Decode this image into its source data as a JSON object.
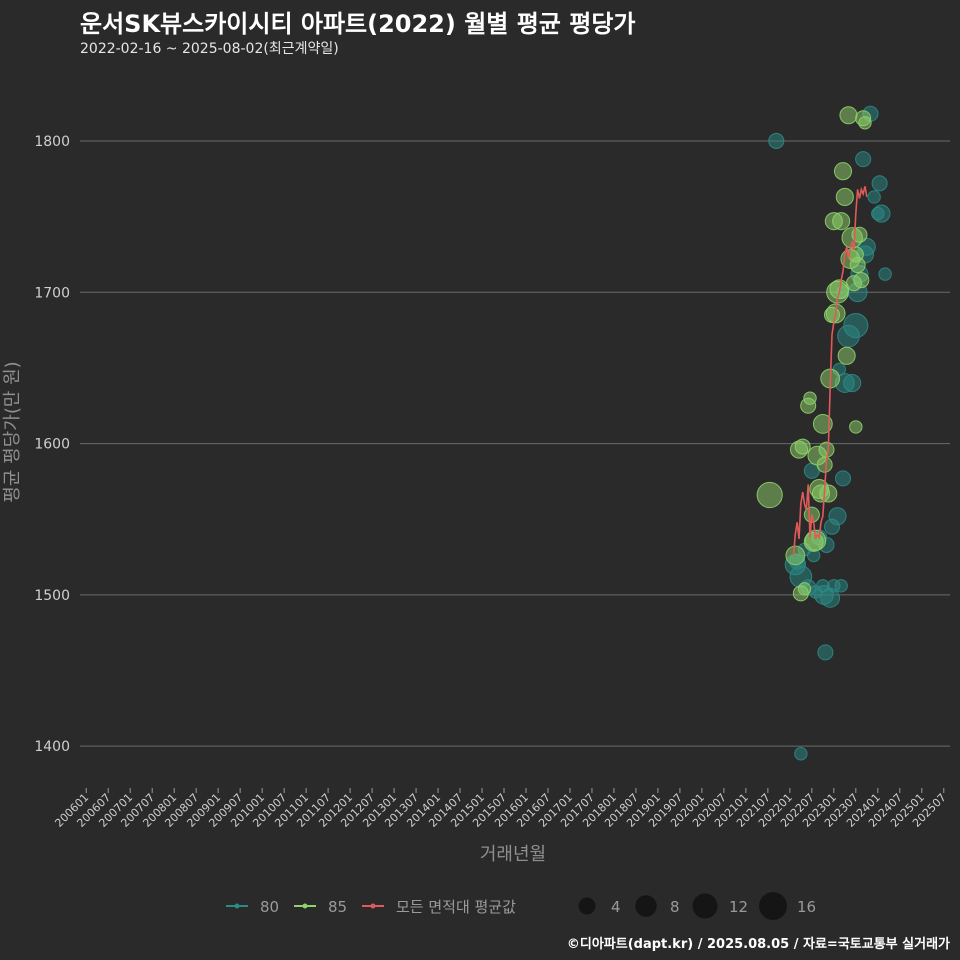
{
  "header": {
    "title": "운서SK뷰스카이시티 아파트(2022) 월별 평균 평당가",
    "subtitle": "2022-02-16 ~ 2025-08-02(최근계약일)"
  },
  "footer": {
    "caption": "©디아파트(dapt.kr) / 2025.08.05 / 자료=국토교통부 실거래가"
  },
  "colors": {
    "background": "#2a2a2b",
    "grid": "#6b6b6b",
    "series_80": "#2a8a86",
    "series_85": "#8fd16a",
    "avg_line": "#e05a5a"
  },
  "chart_data": {
    "type": "scatter",
    "title": "운서SK뷰스카이시티 아파트(2022) 월별 평균 평당가",
    "xlabel": "거래년월",
    "ylabel": "평균 평당가(만 원)",
    "ylim": [
      1375,
      1835
    ],
    "yticks": [
      1400,
      1500,
      1600,
      1700,
      1800
    ],
    "grid": true,
    "x_range_months": [
      -1.7,
      235.7
    ],
    "x_ticks": [
      "200601",
      "200607",
      "200701",
      "200707",
      "200801",
      "200807",
      "200901",
      "200907",
      "201001",
      "201007",
      "201101",
      "201107",
      "201201",
      "201207",
      "201301",
      "201307",
      "201401",
      "201407",
      "201501",
      "201507",
      "201601",
      "201607",
      "201701",
      "201707",
      "201801",
      "201807",
      "201901",
      "201907",
      "202001",
      "202007",
      "202101",
      "202107",
      "202201",
      "202207",
      "202301",
      "202307",
      "202401",
      "202407",
      "202501",
      "202507"
    ],
    "series": [
      {
        "name": "80",
        "color": "#2a8a86",
        "points": [
          [
            193.5,
            1520,
            5
          ],
          [
            194,
            1522,
            2
          ],
          [
            195,
            1512,
            6
          ],
          [
            196,
            1530,
            1
          ],
          [
            197,
            1505,
            2
          ],
          [
            198,
            1582,
            2
          ],
          [
            198.5,
            1526,
            1
          ],
          [
            199,
            1502,
            1
          ],
          [
            200,
            1538,
            2
          ],
          [
            201,
            1506,
            1
          ],
          [
            201.3,
            1500,
            4
          ],
          [
            201.7,
            1462,
            2
          ],
          [
            202,
            1533,
            2
          ],
          [
            203,
            1498,
            4
          ],
          [
            203.5,
            1545,
            2
          ],
          [
            204,
            1506,
            1
          ],
          [
            205,
            1552,
            3
          ],
          [
            206,
            1506,
            1
          ],
          [
            206.5,
            1577,
            2
          ],
          [
            207,
            1640,
            4
          ],
          [
            208,
            1671,
            6
          ],
          [
            209,
            1640,
            3
          ],
          [
            210,
            1678,
            8
          ],
          [
            210.5,
            1700,
            4
          ],
          [
            211,
            1712,
            3
          ],
          [
            212,
            1788,
            2
          ],
          [
            212.5,
            1725,
            3
          ],
          [
            213,
            1730,
            3
          ],
          [
            214,
            1818,
            2
          ],
          [
            215,
            1763,
            1
          ],
          [
            216,
            1752,
            1
          ],
          [
            216.5,
            1772,
            2
          ],
          [
            217,
            1752,
            3
          ],
          [
            218,
            1712,
            1
          ],
          [
            195,
            1395,
            1
          ],
          [
            205.5,
            1649,
            1
          ],
          [
            206.5,
            1700,
            1
          ],
          [
            188.3,
            1800,
            2
          ]
        ]
      },
      {
        "name": "85",
        "color": "#8fd16a",
        "points": [
          [
            193.5,
            1526,
            4
          ],
          [
            194.5,
            1596,
            3
          ],
          [
            195,
            1501,
            2
          ],
          [
            195.5,
            1598,
            2
          ],
          [
            196,
            1504,
            1
          ],
          [
            197,
            1625,
            2
          ],
          [
            197.5,
            1630,
            1
          ],
          [
            198,
            1553,
            2
          ],
          [
            198.5,
            1535,
            4
          ],
          [
            199,
            1536,
            5
          ],
          [
            199.5,
            1592,
            4
          ],
          [
            200,
            1570,
            4
          ],
          [
            200.5,
            1567,
            3
          ],
          [
            201,
            1613,
            4
          ],
          [
            201.5,
            1586,
            2
          ],
          [
            202,
            1596,
            2
          ],
          [
            202.5,
            1567,
            3
          ],
          [
            203,
            1643,
            4
          ],
          [
            203.5,
            1685,
            2
          ],
          [
            204,
            1747,
            3
          ],
          [
            204.5,
            1686,
            4
          ],
          [
            205,
            1700,
            6
          ],
          [
            205.5,
            1702,
            4
          ],
          [
            206,
            1747,
            3
          ],
          [
            206.5,
            1780,
            3
          ],
          [
            207,
            1763,
            3
          ],
          [
            207.5,
            1658,
            3
          ],
          [
            208,
            1817,
            3
          ],
          [
            208.5,
            1722,
            4
          ],
          [
            209,
            1736,
            5
          ],
          [
            209.5,
            1706,
            2
          ],
          [
            210,
            1725,
            2
          ],
          [
            210.5,
            1718,
            2
          ],
          [
            211,
            1738,
            2
          ],
          [
            211.5,
            1708,
            2
          ],
          [
            212,
            1815,
            2
          ],
          [
            212.5,
            1812,
            1
          ],
          [
            210,
            1611,
            1
          ],
          [
            186.5,
            1566,
            9
          ]
        ]
      }
    ],
    "avg_line": {
      "name": "모든 면적대 평균값",
      "color": "#e05a5a",
      "points": [
        [
          193,
          1526
        ],
        [
          193.5,
          1540
        ],
        [
          194,
          1548
        ],
        [
          194.5,
          1537
        ],
        [
          195,
          1560
        ],
        [
          195.5,
          1568
        ],
        [
          196,
          1560
        ],
        [
          196.5,
          1556
        ],
        [
          197,
          1573
        ],
        [
          197.5,
          1538
        ],
        [
          198,
          1553
        ],
        [
          198.5,
          1548
        ],
        [
          199,
          1537
        ],
        [
          199.5,
          1540
        ],
        [
          200,
          1538
        ],
        [
          200.5,
          1548
        ],
        [
          201,
          1552
        ],
        [
          201.5,
          1570
        ],
        [
          202,
          1589
        ],
        [
          202.5,
          1596
        ],
        [
          203,
          1638
        ],
        [
          203.5,
          1672
        ],
        [
          204,
          1680
        ],
        [
          204.5,
          1686
        ],
        [
          205,
          1696
        ],
        [
          205.5,
          1700
        ],
        [
          206,
          1708
        ],
        [
          206.5,
          1714
        ],
        [
          207,
          1725
        ],
        [
          207.5,
          1730
        ],
        [
          208,
          1722
        ],
        [
          208.5,
          1730
        ],
        [
          209,
          1733
        ],
        [
          209.5,
          1728
        ],
        [
          210,
          1752
        ],
        [
          210.5,
          1768
        ],
        [
          211,
          1762
        ],
        [
          211.5,
          1768
        ],
        [
          212,
          1765
        ],
        [
          212.5,
          1770
        ],
        [
          213,
          1763
        ]
      ]
    },
    "size_legend": [
      4,
      8,
      12,
      16
    ]
  }
}
